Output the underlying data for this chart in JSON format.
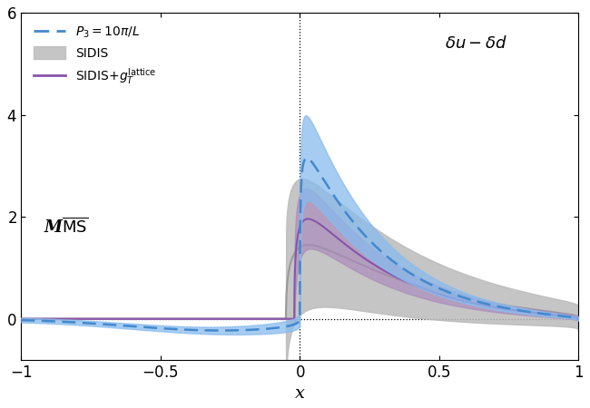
{
  "xlim": [
    -1,
    1
  ],
  "ylim": [
    -0.8,
    6
  ],
  "yticks": [
    0,
    2,
    4,
    6
  ],
  "xticks": [
    -1,
    -0.5,
    0,
    0.5,
    1
  ],
  "xlabel": "x",
  "blue_color": "#4488cc",
  "blue_fill_color": "#88bbee",
  "gray_color": "#999999",
  "gray_fill_color": "#bbbbbb",
  "purple_color": "#8855aa",
  "purple_fill_color": "#aa88bb"
}
